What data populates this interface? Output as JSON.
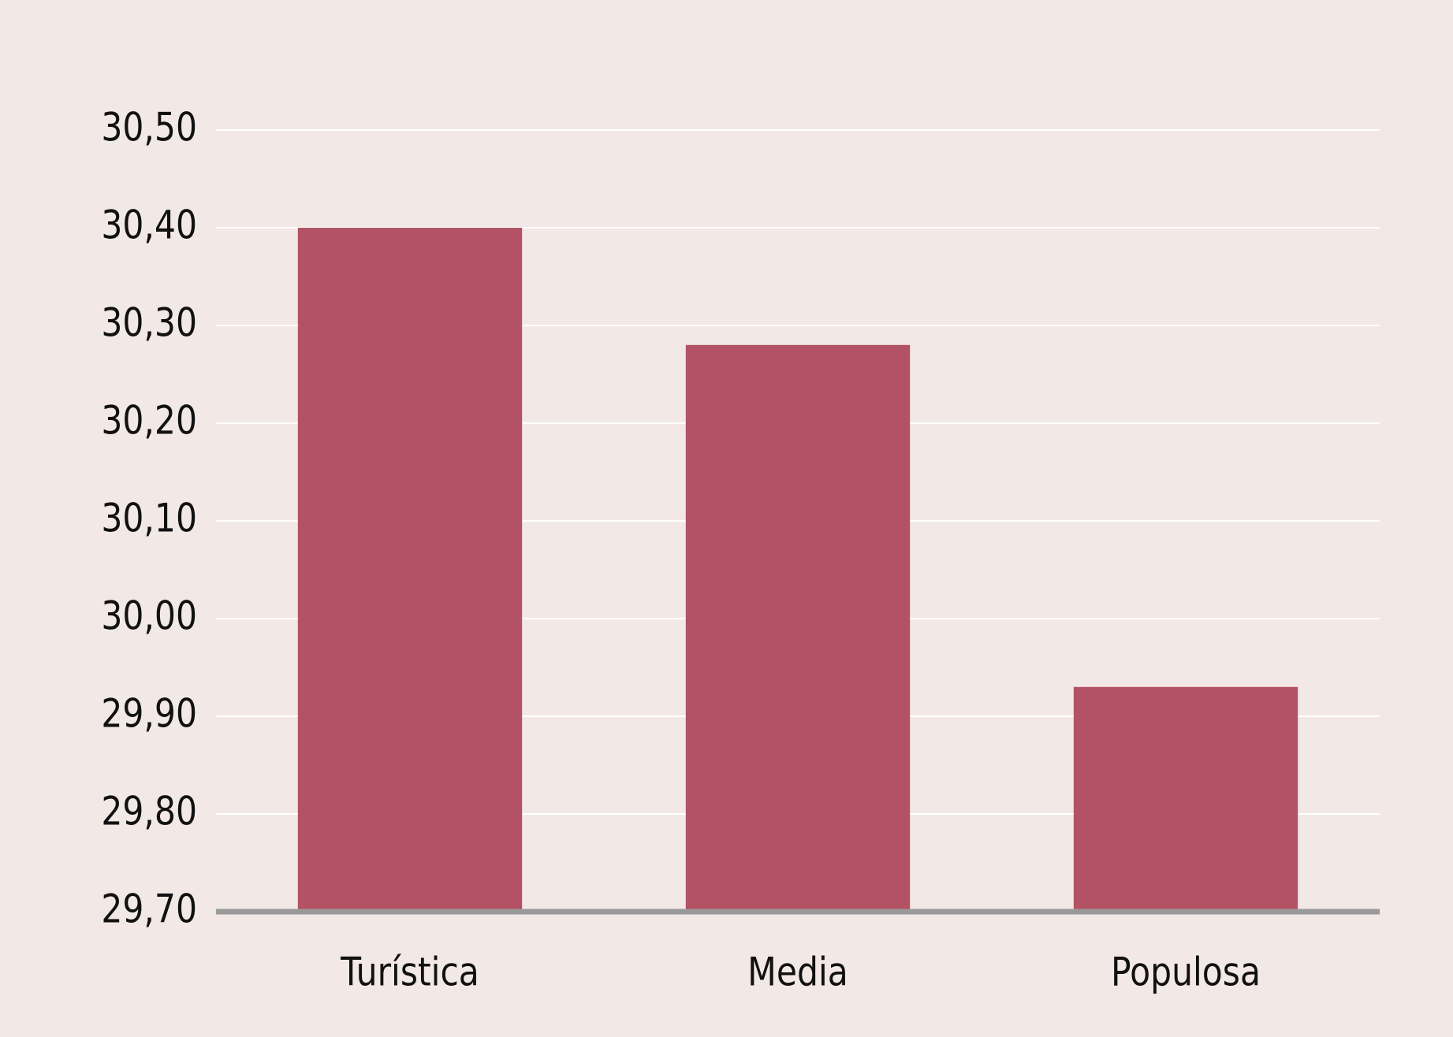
{
  "chart_data": {
    "type": "bar",
    "categories": [
      "Turística",
      "Media",
      "Populosa"
    ],
    "values": [
      30.4,
      30.28,
      29.93
    ],
    "color": "#b35264",
    "ylim": [
      29.7,
      30.5
    ],
    "yticks": [
      {
        "value": 29.7,
        "label": "29,70"
      },
      {
        "value": 29.8,
        "label": "29,80"
      },
      {
        "value": 29.9,
        "label": "29,90"
      },
      {
        "value": 30.0,
        "label": "30,00"
      },
      {
        "value": 30.1,
        "label": "30,10"
      },
      {
        "value": 30.2,
        "label": "30,20"
      },
      {
        "value": 30.3,
        "label": "30,30"
      },
      {
        "value": 30.4,
        "label": "30,40"
      },
      {
        "value": 30.5,
        "label": "30,50"
      }
    ],
    "grid": true
  }
}
